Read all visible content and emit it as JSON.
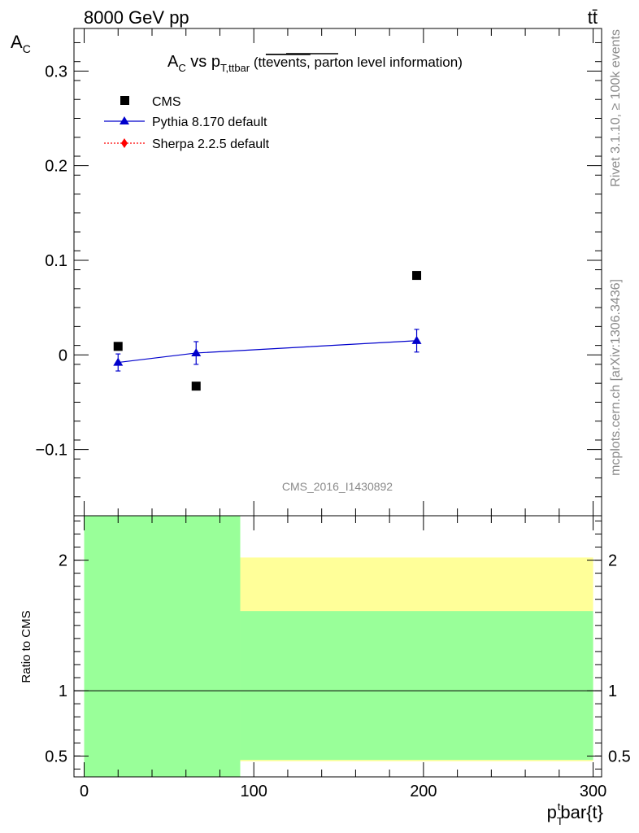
{
  "header": {
    "left_label": "8000 GeV pp",
    "right_label": "tt̄"
  },
  "side_labels": {
    "rivet": "Rivet 3.1.10, ≥ 100k events",
    "mcplots": "mcplots.cern.ch [arXiv:1306.3436]"
  },
  "plot_title": {
    "main": "A",
    "main_sub": "C",
    "vs": " vs p",
    "vs_sub": "T,ttbar",
    "paren_open": " (tt",
    "overlined": "events,",
    "rest": " parton level information)"
  },
  "watermark": "CMS_2016_I1430892",
  "legend": [
    {
      "label": "CMS",
      "marker": "square",
      "color": "#000000"
    },
    {
      "label": "Pythia 8.170 default",
      "marker": "triangle",
      "color": "#0000cc"
    },
    {
      "label": "Sherpa 2.2.5 default",
      "marker": "diamond",
      "color": "#ff0000"
    }
  ],
  "axes": {
    "y_main_label": "A",
    "y_main_label_sub": "C",
    "y_ratio_label": "Ratio to CMS",
    "x_label_p": "p",
    "x_label_sub": "T",
    "x_label_sup": "t",
    "x_label_rest": "bar{t}"
  },
  "chart_data": [
    {
      "type": "scatter",
      "panel": "main",
      "xlim": [
        -6,
        305
      ],
      "ylim": [
        -0.17,
        0.345
      ],
      "yticks": [
        -0.1,
        0,
        0.1,
        0.2,
        0.3
      ],
      "ytick_labels": [
        "−0.1",
        "0",
        "0.1",
        "0.2",
        "0.3"
      ],
      "series": [
        {
          "name": "CMS",
          "x": [
            20,
            66,
            196
          ],
          "y": [
            0.009,
            -0.033,
            0.084
          ],
          "marker": "square",
          "color": "#000000"
        },
        {
          "name": "Pythia 8.170 default",
          "x": [
            20,
            66,
            196
          ],
          "y": [
            -0.008,
            0.002,
            0.015
          ],
          "yerr": [
            0.009,
            0.012,
            0.012
          ],
          "marker": "triangle",
          "color": "#0000cc"
        }
      ]
    },
    {
      "type": "area",
      "panel": "ratio",
      "xlim": [
        -6,
        305
      ],
      "ylim": [
        0.34,
        2.34
      ],
      "yticks": [
        0.5,
        1,
        2
      ],
      "ytick_labels": [
        "0.5",
        "1",
        "2"
      ],
      "xticks": [
        0,
        100,
        200,
        300
      ],
      "xtick_labels": [
        "0",
        "100",
        "200",
        "300"
      ],
      "reference_line": 1,
      "bands": [
        {
          "name": "yellow",
          "color": "#ffff99",
          "bins": [
            {
              "x0": 0,
              "x1": 41,
              "lo": 0.34,
              "hi": 2.34
            },
            {
              "x0": 41,
              "x1": 92,
              "lo": 0.34,
              "hi": 2.2
            },
            {
              "x0": 92,
              "x1": 300,
              "lo": 0.46,
              "hi": 2.02
            }
          ]
        },
        {
          "name": "green",
          "color": "#99ff99",
          "bins": [
            {
              "x0": 0,
              "x1": 92,
              "lo": 0.34,
              "hi": 2.34
            },
            {
              "x0": 92,
              "x1": 300,
              "lo": 0.47,
              "hi": 1.61
            }
          ]
        }
      ]
    }
  ]
}
